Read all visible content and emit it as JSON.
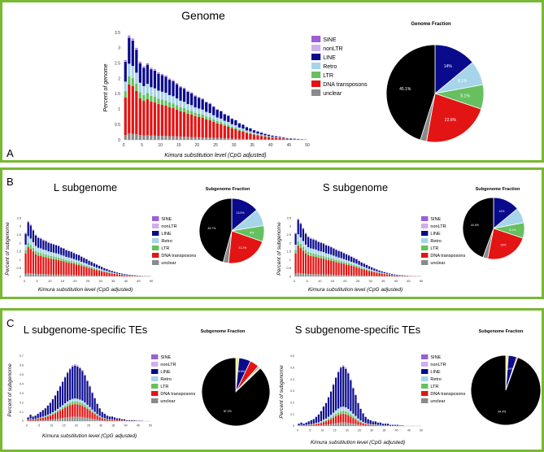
{
  "legend": [
    "SINE",
    "nonLTR",
    "LINE",
    "Retro",
    "LTR",
    "DNA transposons",
    "unclear"
  ],
  "colors": {
    "SINE": "#9a5fd6",
    "nonLTR": "#cdb0ea",
    "LINE": "#0a0a8c",
    "Retro": "#a6d4e8",
    "LTR": "#66c05f",
    "DNA transposons": "#e31414",
    "unclear": "#8a8a8a",
    "black": "#000000",
    "yellow": "#f2ef7a",
    "border": "#78b833"
  },
  "panels": [
    {
      "letter": "A",
      "title": "Genome",
      "pie_title": "Genome Fraction"
    },
    {
      "letter": "B"
    },
    {
      "letter": "C"
    }
  ],
  "chart_data": [
    {
      "id": "genome",
      "type": "bar",
      "stacked": true,
      "title": "Genome",
      "xlabel": "Kimura substitution level (CpG adjusted)",
      "ylabel": "Percent of genome",
      "ylim": [
        0,
        3.5
      ],
      "yticks": [
        "0",
        "0.5",
        "1",
        "1.5",
        "2",
        "2.5",
        "3",
        "3.5"
      ],
      "xlim": [
        0,
        50
      ],
      "xticks": [
        "0",
        "5",
        "10",
        "15",
        "20",
        "25",
        "30",
        "35",
        "40",
        "45",
        "50"
      ],
      "series_order": [
        "unclear",
        "DNA transposons",
        "LTR",
        "Retro",
        "LINE",
        "nonLTR",
        "SINE"
      ],
      "shape": {
        "totals": [
          2.6,
          3.4,
          3.3,
          3.0,
          2.55,
          2.4,
          2.5,
          2.35,
          2.3,
          2.2,
          2.15,
          2.1,
          2.0,
          1.95,
          1.85,
          1.75,
          1.7,
          1.6,
          1.55,
          1.45,
          1.4,
          1.35,
          1.25,
          1.2,
          1.1,
          1.0,
          0.95,
          0.85,
          0.8,
          0.7,
          0.65,
          0.55,
          0.5,
          0.42,
          0.38,
          0.32,
          0.28,
          0.24,
          0.2,
          0.17,
          0.14,
          0.12,
          0.1,
          0.08,
          0.06,
          0.05,
          0.04,
          0.03,
          0.02,
          0.01
        ],
        "fractions": {
          "unclear": 0.06,
          "DNA transposons": 0.47,
          "LTR": 0.08,
          "Retro": 0.12,
          "LINE": 0.25,
          "nonLTR": 0.01,
          "SINE": 0.01
        }
      }
    },
    {
      "id": "genome-pie",
      "type": "pie",
      "title": "Genome Fraction",
      "slices": [
        {
          "name": "LINE",
          "value": 14,
          "label": "14%"
        },
        {
          "name": "Retro",
          "value": 8.1,
          "label": "8.1%"
        },
        {
          "name": "LTR",
          "value": 8.1,
          "label": "8.1%"
        },
        {
          "name": "DNA transposons",
          "value": 22.6,
          "label": "22.6%"
        },
        {
          "name": "unclear",
          "value": 2.1,
          "label": ""
        },
        {
          "name": "black",
          "value": 45.1,
          "label": "45.1%"
        }
      ]
    },
    {
      "id": "l-sub",
      "type": "bar",
      "stacked": true,
      "title": "L subgenome",
      "xlabel": "Kimura substitution level (CpG adjusted)",
      "ylabel": "Percent of subgenome",
      "ylim": [
        0,
        3.5
      ],
      "yticks": [
        "0",
        "0.5",
        "1",
        "1.5",
        "2",
        "2.5",
        "3",
        "3.5"
      ],
      "xlim": [
        0,
        50
      ],
      "xticks": [
        "0",
        "5",
        "10",
        "15",
        "20",
        "25",
        "30",
        "35",
        "40",
        "45",
        "50"
      ],
      "series_order": [
        "unclear",
        "DNA transposons",
        "LTR",
        "Retro",
        "LINE",
        "nonLTR",
        "SINE"
      ],
      "shape": {
        "totals": [
          2.6,
          3.3,
          3.1,
          2.8,
          2.5,
          2.35,
          2.3,
          2.2,
          2.15,
          2.05,
          2.0,
          1.95,
          1.9,
          1.85,
          1.75,
          1.7,
          1.6,
          1.55,
          1.5,
          1.42,
          1.35,
          1.3,
          1.2,
          1.12,
          1.05,
          0.95,
          0.88,
          0.8,
          0.72,
          0.65,
          0.58,
          0.5,
          0.45,
          0.38,
          0.33,
          0.28,
          0.24,
          0.2,
          0.17,
          0.14,
          0.12,
          0.1,
          0.08,
          0.07,
          0.05,
          0.04,
          0.03,
          0.02,
          0.02,
          0.01
        ],
        "fractions": {
          "unclear": 0.06,
          "DNA transposons": 0.47,
          "LTR": 0.08,
          "Retro": 0.12,
          "LINE": 0.25,
          "nonLTR": 0.01,
          "SINE": 0.01
        }
      }
    },
    {
      "id": "l-sub-pie",
      "type": "pie",
      "title": "Subgenome Fraction",
      "slices": [
        {
          "name": "LINE",
          "value": 13.9,
          "label": "13.9%"
        },
        {
          "name": "Retro",
          "value": 8.5,
          "label": ""
        },
        {
          "name": "LTR",
          "value": 8,
          "label": "8%"
        },
        {
          "name": "DNA transposons",
          "value": 21.2,
          "label": "21.2%"
        },
        {
          "name": "unclear",
          "value": 2.7,
          "label": ""
        },
        {
          "name": "black",
          "value": 45.7,
          "label": "45.7%"
        }
      ]
    },
    {
      "id": "s-sub",
      "type": "bar",
      "stacked": true,
      "title": "S subgenome",
      "xlabel": "Kimura substitution level (CpG adjusted)",
      "ylabel": "Percent of subgenome",
      "ylim": [
        0,
        3.5
      ],
      "yticks": [
        "0",
        "0.5",
        "1",
        "1.5",
        "2",
        "2.5",
        "3",
        "3.5"
      ],
      "xlim": [
        0,
        50
      ],
      "xticks": [
        "0",
        "5",
        "10",
        "15",
        "20",
        "25",
        "30",
        "35",
        "40",
        "45",
        "50"
      ],
      "series_order": [
        "unclear",
        "DNA transposons",
        "LTR",
        "Retro",
        "LINE",
        "nonLTR",
        "SINE"
      ],
      "shape": {
        "totals": [
          2.6,
          3.45,
          3.2,
          2.9,
          2.6,
          2.4,
          2.3,
          2.25,
          2.2,
          2.1,
          2.05,
          2.0,
          1.9,
          1.85,
          1.78,
          1.7,
          1.62,
          1.55,
          1.5,
          1.42,
          1.35,
          1.28,
          1.2,
          1.12,
          1.05,
          0.95,
          0.85,
          0.78,
          0.7,
          0.62,
          0.55,
          0.48,
          0.42,
          0.36,
          0.31,
          0.26,
          0.22,
          0.18,
          0.15,
          0.12,
          0.1,
          0.08,
          0.07,
          0.05,
          0.04,
          0.03,
          0.02,
          0.02,
          0.01,
          0.01
        ],
        "fractions": {
          "unclear": 0.06,
          "DNA transposons": 0.47,
          "LTR": 0.08,
          "Retro": 0.12,
          "LINE": 0.25,
          "nonLTR": 0.01,
          "SINE": 0.01
        }
      }
    },
    {
      "id": "s-sub-pie",
      "type": "pie",
      "title": "Subgenome Fraction",
      "slices": [
        {
          "name": "LINE",
          "value": 14,
          "label": "14%"
        },
        {
          "name": "Retro",
          "value": 8,
          "label": ""
        },
        {
          "name": "LTR",
          "value": 8.1,
          "label": "8.1%"
        },
        {
          "name": "DNA transposons",
          "value": 23,
          "label": "23%"
        },
        {
          "name": "unclear",
          "value": 2.5,
          "label": ""
        },
        {
          "name": "black",
          "value": 44.4,
          "label": "44.4%"
        }
      ]
    },
    {
      "id": "l-spec",
      "type": "bar",
      "stacked": true,
      "title": "L subgenome-specific TEs",
      "xlabel": "Kimura substitution level (CpG adjusted)",
      "ylabel": "Percent of subgenome",
      "ylim": [
        0,
        0.7
      ],
      "yticks": [
        "0",
        "0.1",
        "0.2",
        "0.3",
        "0.4",
        "0.5",
        "0.6",
        "0.7"
      ],
      "xlim": [
        0,
        50
      ],
      "xticks": [
        "0",
        "5",
        "10",
        "15",
        "20",
        "25",
        "30",
        "35",
        "40",
        "45",
        "50"
      ],
      "series_order": [
        "unclear",
        "DNA transposons",
        "LTR",
        "Retro",
        "LINE",
        "nonLTR",
        "SINE"
      ],
      "shape": {
        "totals": [
          0.04,
          0.07,
          0.05,
          0.06,
          0.08,
          0.1,
          0.12,
          0.14,
          0.17,
          0.2,
          0.24,
          0.28,
          0.33,
          0.38,
          0.43,
          0.48,
          0.53,
          0.57,
          0.6,
          0.61,
          0.6,
          0.58,
          0.55,
          0.5,
          0.44,
          0.38,
          0.31,
          0.25,
          0.19,
          0.14,
          0.1,
          0.08,
          0.06,
          0.05,
          0.05,
          0.04,
          0.03,
          0.03,
          0.02,
          0.02,
          0.01,
          0.01,
          0.01,
          0.01,
          0.005,
          0.005,
          0.005,
          0.0,
          0.0,
          0.0
        ],
        "fractions": {
          "unclear": 0.08,
          "DNA transposons": 0.22,
          "LTR": 0.05,
          "Retro": 0.05,
          "LINE": 0.58,
          "nonLTR": 0.01,
          "SINE": 0.01
        }
      }
    },
    {
      "id": "l-spec-pie",
      "type": "pie",
      "title": "Subgenome Fraction",
      "slices": [
        {
          "name": "yellow",
          "value": 1.5,
          "label": ""
        },
        {
          "name": "LINE",
          "value": 5.6,
          "label": "5.6%"
        },
        {
          "name": "DNA transposons",
          "value": 4.4,
          "label": ""
        },
        {
          "name": "LTR",
          "value": 0.8,
          "label": ""
        },
        {
          "name": "unclear",
          "value": 0.5,
          "label": ""
        },
        {
          "name": "black",
          "value": 87.2,
          "label": "87.2%"
        }
      ]
    },
    {
      "id": "s-spec",
      "type": "bar",
      "stacked": true,
      "title": "S subgenome-specific TEs",
      "xlabel": "Kimura substitution level (CpG adjusted)",
      "ylabel": "Percent of subgenome",
      "ylim": [
        0,
        0.6
      ],
      "yticks": [
        "0",
        "0.1",
        "0.2",
        "0.3",
        "0.4",
        "0.5",
        "0.6"
      ],
      "xlim": [
        0,
        50
      ],
      "xticks": [
        "0",
        "5",
        "10",
        "15",
        "20",
        "25",
        "30",
        "35",
        "40",
        "45",
        "50"
      ],
      "series_order": [
        "unclear",
        "DNA transposons",
        "LTR",
        "Retro",
        "LINE",
        "nonLTR",
        "SINE"
      ],
      "shape": {
        "totals": [
          0.02,
          0.03,
          0.02,
          0.03,
          0.04,
          0.05,
          0.06,
          0.08,
          0.1,
          0.13,
          0.17,
          0.2,
          0.25,
          0.3,
          0.36,
          0.42,
          0.47,
          0.51,
          0.52,
          0.5,
          0.46,
          0.4,
          0.33,
          0.27,
          0.2,
          0.15,
          0.11,
          0.08,
          0.06,
          0.05,
          0.04,
          0.04,
          0.03,
          0.03,
          0.02,
          0.02,
          0.02,
          0.01,
          0.01,
          0.01,
          0.01,
          0.005,
          0.005,
          0.0,
          0.0,
          0.0,
          0.0,
          0.0,
          0.0,
          0.0
        ],
        "fractions": {
          "unclear": 0.06,
          "DNA transposons": 0.14,
          "LTR": 0.05,
          "Retro": 0.07,
          "LINE": 0.66,
          "nonLTR": 0.01,
          "SINE": 0.01
        }
      }
    },
    {
      "id": "s-spec-pie",
      "type": "pie",
      "title": "Subgenome Fraction",
      "slices": [
        {
          "name": "yellow",
          "value": 1.2,
          "label": ""
        },
        {
          "name": "LINE",
          "value": 3.9,
          "label": "3.9%"
        },
        {
          "name": "DNA transposons",
          "value": 0.5,
          "label": ""
        },
        {
          "name": "black",
          "value": 94.4,
          "label": "94.4%"
        }
      ]
    }
  ]
}
